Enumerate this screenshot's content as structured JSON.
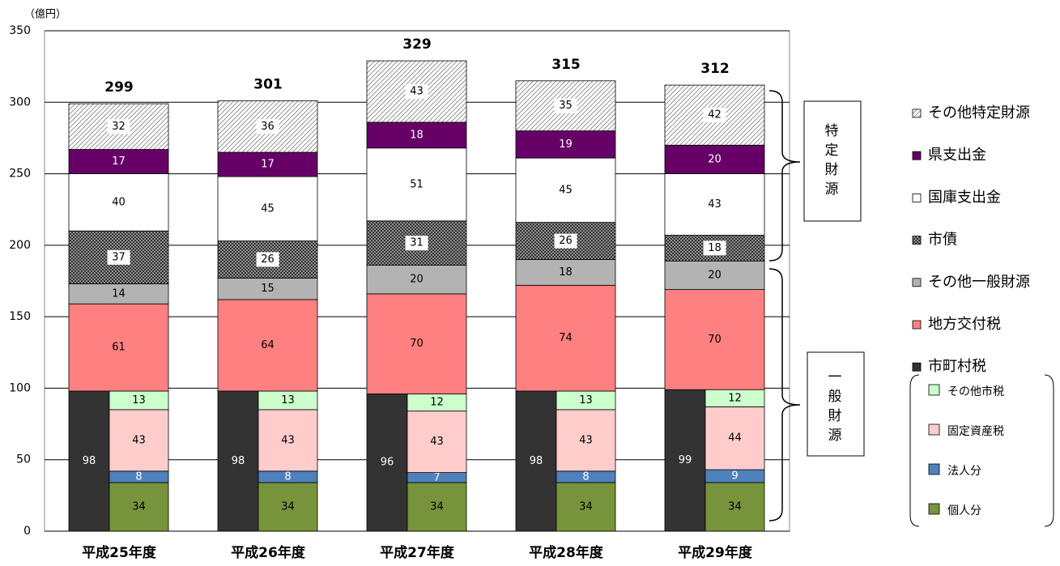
{
  "chart_data": {
    "type": "stacked-bar",
    "y_unit": "（億円）",
    "categories": [
      "平成25年度",
      "平成26年度",
      "平成27年度",
      "平成28年度",
      "平成29年度"
    ],
    "totals": [
      299,
      301,
      329,
      315,
      312
    ],
    "series": [
      {
        "name": "市町村税",
        "color": "#333333",
        "values": [
          98,
          98,
          96,
          98,
          99
        ]
      },
      {
        "name": "地方交付税",
        "color": "#ff8080",
        "values": [
          61,
          64,
          70,
          74,
          70
        ]
      },
      {
        "name": "その他一般財源",
        "color": "#b3b3b3",
        "values": [
          14,
          15,
          20,
          18,
          20
        ]
      },
      {
        "name": "市債",
        "color": "#333333",
        "pattern": "dots",
        "values": [
          37,
          26,
          31,
          26,
          18
        ]
      },
      {
        "name": "国庫支出金",
        "color": "#ffffff",
        "values": [
          40,
          45,
          51,
          45,
          43
        ]
      },
      {
        "name": "県支出金",
        "color": "#660066",
        "values": [
          17,
          17,
          18,
          19,
          20
        ]
      },
      {
        "name": "その他特定財源",
        "color": "#666666",
        "pattern": "hatch",
        "values": [
          32,
          36,
          43,
          35,
          42
        ]
      }
    ],
    "breakdown": [
      {
        "name": "個人分",
        "color": "#77933c",
        "values": [
          34,
          34,
          34,
          34,
          34
        ]
      },
      {
        "name": "法人分",
        "color": "#4f81bd",
        "values": [
          8,
          8,
          7,
          8,
          9
        ]
      },
      {
        "name": "固定資産税",
        "color": "#ffcccc",
        "values": [
          43,
          43,
          43,
          43,
          44
        ]
      },
      {
        "name": "その他市税",
        "color": "#ccffcc",
        "values": [
          13,
          13,
          12,
          13,
          12
        ]
      }
    ],
    "groups": [
      "特定財源",
      "一般財源"
    ],
    "ylim": [
      0,
      350
    ],
    "yticks": [
      0,
      50,
      100,
      150,
      200,
      250,
      300,
      350
    ],
    "grid": true
  }
}
